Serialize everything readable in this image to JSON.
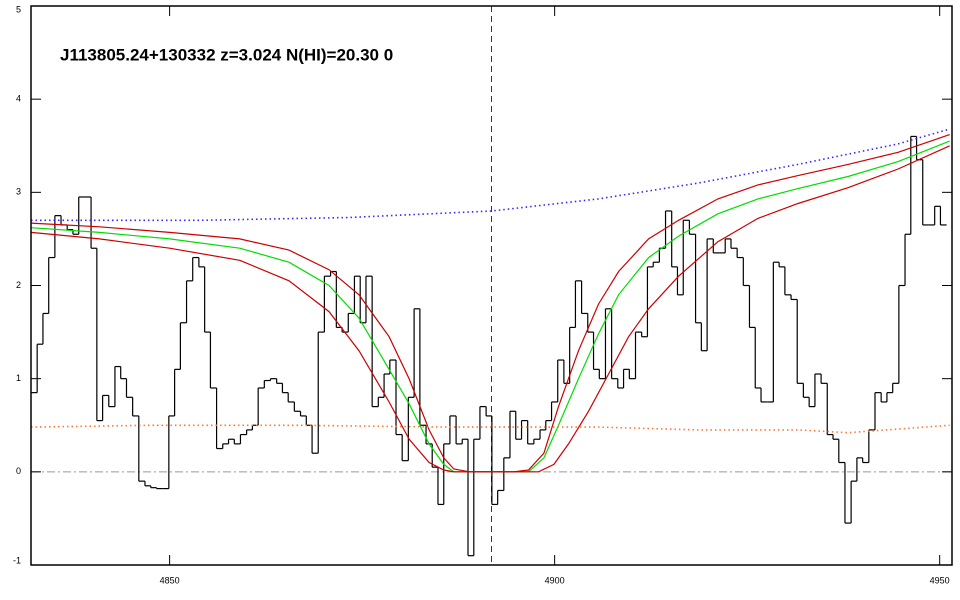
{
  "chart_data": {
    "type": "spectrum",
    "title": "J113805.24+130332 z=3.024 N(HI)=20.30 0",
    "xlim": [
      4832,
      4951.6
    ],
    "ylim": [
      -1,
      5
    ],
    "xticks": [
      4850,
      4900,
      4950
    ],
    "yticks": [
      -1,
      0,
      1,
      2,
      3,
      4,
      5
    ],
    "hline": 0,
    "vline": 4891.8,
    "series": [
      {
        "style": "step",
        "color": "#000000",
        "x": [
          4832.4,
          4833.2,
          4833.9,
          4834.7,
          4835.5,
          4836.3,
          4837.1,
          4837.8,
          4838.6,
          4839.4,
          4840.2,
          4840.9,
          4841.7,
          4842.5,
          4843.3,
          4844.0,
          4844.8,
          4845.6,
          4846.4,
          4847.2,
          4847.9,
          4848.7,
          4849.5,
          4850.3,
          4851.0,
          4851.8,
          4852.6,
          4853.4,
          4854.2,
          4854.9,
          4855.7,
          4856.5,
          4857.3,
          4858.0,
          4858.8,
          4859.6,
          4860.4,
          4861.1,
          4861.9,
          4862.7,
          4863.5,
          4864.3,
          4865.0,
          4865.8,
          4866.6,
          4867.4,
          4868.1,
          4868.9,
          4869.7,
          4870.5,
          4871.3,
          4872.0,
          4872.8,
          4873.6,
          4874.4,
          4875.1,
          4875.9,
          4876.7,
          4877.5,
          4878.2,
          4879.0,
          4879.8,
          4880.6,
          4881.4,
          4882.1,
          4882.9,
          4883.7,
          4884.5,
          4885.2,
          4886.0,
          4886.8,
          4887.6,
          4888.4,
          4889.1,
          4889.9,
          4890.7,
          4891.5,
          4892.2,
          4893.0,
          4893.8,
          4894.6,
          4895.3,
          4896.1,
          4896.9,
          4897.7,
          4898.5,
          4899.2,
          4900.0,
          4900.8,
          4901.6,
          4902.3,
          4903.1,
          4903.9,
          4904.7,
          4905.4,
          4906.2,
          4907.0,
          4907.8,
          4908.6,
          4909.3,
          4910.1,
          4910.9,
          4911.7,
          4912.4,
          4913.2,
          4914.0,
          4914.8,
          4915.6,
          4916.3,
          4917.1,
          4917.9,
          4918.7,
          4919.4,
          4920.2,
          4921.0,
          4921.8,
          4922.5,
          4923.3,
          4924.1,
          4924.9,
          4925.7,
          4926.4,
          4927.2,
          4928.0,
          4928.8,
          4929.5,
          4930.3,
          4931.1,
          4931.9,
          4932.7,
          4933.4,
          4934.2,
          4935.0,
          4935.8,
          4936.5,
          4937.3,
          4938.1,
          4938.9,
          4939.6,
          4940.4,
          4941.2,
          4942.0,
          4942.8,
          4943.5,
          4944.3,
          4945.1,
          4945.9,
          4946.6,
          4947.4,
          4948.2,
          4949.0,
          4949.7,
          4950.5
        ],
        "values": [
          0.85,
          1.37,
          1.7,
          2.3,
          2.75,
          2.65,
          2.6,
          2.55,
          2.95,
          2.95,
          2.4,
          0.55,
          0.82,
          0.7,
          1.13,
          1.0,
          0.8,
          0.6,
          -0.1,
          -0.15,
          -0.17,
          -0.18,
          -0.18,
          0.6,
          1.1,
          1.6,
          2.05,
          2.3,
          2.2,
          1.5,
          0.9,
          0.25,
          0.3,
          0.35,
          0.3,
          0.4,
          0.45,
          0.5,
          0.9,
          0.98,
          1.0,
          0.95,
          0.85,
          0.75,
          0.65,
          0.6,
          0.5,
          0.2,
          1.5,
          2.1,
          2.15,
          1.55,
          1.5,
          1.7,
          2.1,
          1.6,
          2.1,
          0.7,
          0.8,
          1.05,
          1.2,
          0.4,
          0.12,
          0.8,
          1.75,
          0.5,
          0.3,
          0.05,
          -0.35,
          0.3,
          0.6,
          0.3,
          0.35,
          -0.9,
          0.35,
          0.7,
          0.6,
          -0.35,
          -0.2,
          0.15,
          0.65,
          0.35,
          0.55,
          0.3,
          0.35,
          0.45,
          0.55,
          0.75,
          1.2,
          0.95,
          1.55,
          2.05,
          1.7,
          1.5,
          1.1,
          1.0,
          1.75,
          1.0,
          0.9,
          1.1,
          1.0,
          1.5,
          1.45,
          2.2,
          2.25,
          2.4,
          2.8,
          2.2,
          1.9,
          2.7,
          2.55,
          1.6,
          1.3,
          2.5,
          2.35,
          2.35,
          2.5,
          2.4,
          2.3,
          2.0,
          1.55,
          0.9,
          0.75,
          0.75,
          2.25,
          2.2,
          1.9,
          1.85,
          0.95,
          0.8,
          0.7,
          1.05,
          0.95,
          0.4,
          0.35,
          0.1,
          -0.55,
          -0.1,
          0.15,
          0.1,
          0.45,
          0.85,
          0.75,
          0.85,
          0.95,
          2.0,
          2.55,
          3.6,
          3.35,
          2.65,
          2.65,
          2.85,
          2.65
        ]
      },
      {
        "style": "line",
        "color": "#00dd00",
        "x": [
          4832,
          4840.9,
          4850,
          4859.1,
          4865.5,
          4870.7,
          4874.6,
          4878.5,
          4881.1,
          4883.7,
          4885.6,
          4886.9,
          4896.6,
          4898.6,
          4900.5,
          4903.1,
          4905.7,
          4908.3,
          4912.2,
          4916.1,
          4921.2,
          4926.4,
          4931.6,
          4938.1,
          4944.6,
          4951.3
        ],
        "values": [
          2.62,
          2.57,
          2.5,
          2.4,
          2.25,
          2.0,
          1.65,
          1.1,
          0.73,
          0.3,
          0.08,
          0,
          0,
          0.15,
          0.5,
          1.0,
          1.48,
          1.9,
          2.3,
          2.53,
          2.77,
          2.93,
          3.04,
          3.17,
          3.33,
          3.55
        ]
      },
      {
        "style": "line",
        "color": "#cc0000",
        "x": [
          4832,
          4840.9,
          4850,
          4859.1,
          4865.5,
          4870.7,
          4874.6,
          4878.5,
          4881.1,
          4883.7,
          4885.6,
          4886.9,
          4888.9,
          4894.7,
          4896.6,
          4898.6,
          4900.5,
          4903.1,
          4905.7,
          4908.3,
          4912.2,
          4916.1,
          4921.2,
          4926.4,
          4931.6,
          4938.1,
          4944.6,
          4951.3
        ],
        "values": [
          2.67,
          2.63,
          2.57,
          2.5,
          2.38,
          2.17,
          1.9,
          1.45,
          1.0,
          0.45,
          0.15,
          0.03,
          0,
          0,
          0.02,
          0.2,
          0.7,
          1.3,
          1.8,
          2.15,
          2.5,
          2.7,
          2.93,
          3.08,
          3.18,
          3.3,
          3.43,
          3.62
        ]
      },
      {
        "style": "line",
        "color": "#cc0000",
        "x": [
          4832,
          4840.9,
          4850,
          4859.1,
          4865.5,
          4870.7,
          4874.6,
          4878.5,
          4881.1,
          4883.7,
          4885.6,
          4886.9,
          4897.9,
          4899.9,
          4901.8,
          4904.4,
          4907.0,
          4909.6,
          4912.2,
          4916.1,
          4921.2,
          4926.4,
          4931.6,
          4938.1,
          4944.6,
          4951.3
        ],
        "values": [
          2.57,
          2.5,
          2.4,
          2.27,
          2.05,
          1.72,
          1.3,
          0.75,
          0.35,
          0.1,
          0.02,
          0,
          0,
          0.08,
          0.3,
          0.65,
          1.05,
          1.45,
          1.75,
          2.1,
          2.47,
          2.72,
          2.88,
          3.05,
          3.25,
          3.5
        ]
      },
      {
        "style": "dotted",
        "color": "#4422ff",
        "x": [
          4832,
          4853.9,
          4873.3,
          4891.8,
          4905.7,
          4918.7,
          4931.6,
          4944.6,
          4951.3
        ],
        "values": [
          2.7,
          2.7,
          2.73,
          2.8,
          2.93,
          3.1,
          3.3,
          3.52,
          3.68
        ]
      },
      {
        "style": "dotted",
        "color": "#ff7733",
        "x": [
          4832,
          4847.4,
          4866.8,
          4886.3,
          4905.7,
          4918.7,
          4931.6,
          4938.1,
          4951.3
        ],
        "values": [
          0.48,
          0.5,
          0.5,
          0.48,
          0.48,
          0.45,
          0.45,
          0.42,
          0.5
        ]
      }
    ]
  }
}
